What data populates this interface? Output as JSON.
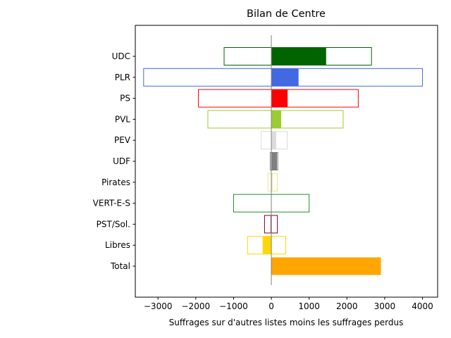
{
  "chart_data": {
    "type": "bar",
    "orientation": "horizontal",
    "title": "Bilan de Centre",
    "xlabel": "Suffrages sur d'autres listes moins les suffrages perdus",
    "ylabel": "",
    "xlim": [
      -3600,
      4400
    ],
    "xticks": [
      -3000,
      -2000,
      -1000,
      0,
      1000,
      2000,
      3000,
      4000
    ],
    "xtick_labels": [
      "−3000",
      "−2000",
      "−1000",
      "0",
      "1000",
      "2000",
      "3000",
      "4000"
    ],
    "grid": false,
    "categories": [
      "UDC",
      "PLR",
      "PS",
      "PVL",
      "PEV",
      "UDF",
      "Pirates",
      "VERT-E-S",
      "PST/Sol.",
      "Libres",
      "Total"
    ],
    "series": [
      {
        "role": "range",
        "low": [
          -1250,
          -3380,
          -1930,
          -1680,
          -270,
          -30,
          -90,
          -1000,
          -180,
          -630,
          0
        ],
        "high": [
          2650,
          4000,
          2300,
          1900,
          420,
          170,
          160,
          1000,
          160,
          380,
          0
        ]
      },
      {
        "role": "net",
        "values": [
          1450,
          720,
          430,
          260,
          130,
          150,
          30,
          0,
          -20,
          -230,
          2900
        ]
      }
    ],
    "colors": [
      "#006400",
      "#4169e1",
      "#ff0000",
      "#9acd32",
      "#dcdcdc",
      "#808080",
      "#f0e68c",
      "#228b22",
      "#800020",
      "#ffd700",
      "#ffa500"
    ]
  }
}
